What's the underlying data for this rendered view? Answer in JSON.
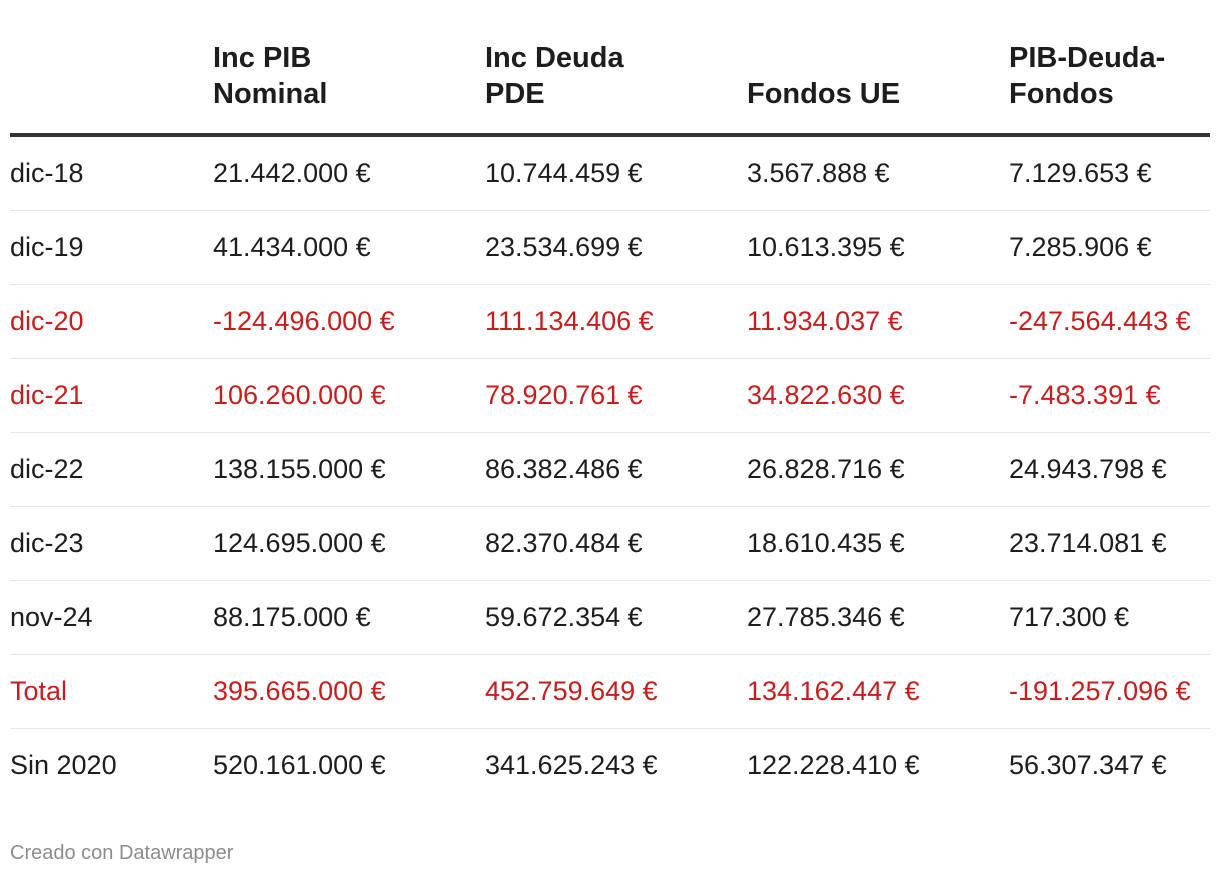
{
  "chart_data": {
    "type": "table",
    "columns": [
      "",
      "Inc PIB Nominal",
      "Inc Deuda PDE",
      "Fondos UE",
      "PIB-Deuda-Fondos"
    ],
    "column_lines": [
      [
        "",
        ""
      ],
      [
        "Inc PIB",
        "Nominal"
      ],
      [
        "Inc Deuda",
        "PDE"
      ],
      [
        "",
        "Fondos UE"
      ],
      [
        "PIB-Deuda-",
        "Fondos"
      ]
    ],
    "rows": [
      {
        "cells": [
          "dic-18",
          "21.442.000 €",
          "10.744.459 €",
          "3.567.888 €",
          "7.129.653 €"
        ],
        "highlight": false
      },
      {
        "cells": [
          "dic-19",
          "41.434.000 €",
          "23.534.699 €",
          "10.613.395 €",
          "7.285.906 €"
        ],
        "highlight": false
      },
      {
        "cells": [
          "dic-20",
          "-124.496.000 €",
          "111.134.406 €",
          "11.934.037 €",
          "-247.564.443 €"
        ],
        "highlight": true
      },
      {
        "cells": [
          "dic-21",
          "106.260.000 €",
          "78.920.761 €",
          "34.822.630 €",
          "-7.483.391 €"
        ],
        "highlight": true
      },
      {
        "cells": [
          "dic-22",
          "138.155.000 €",
          "86.382.486 €",
          "26.828.716 €",
          "24.943.798 €"
        ],
        "highlight": false
      },
      {
        "cells": [
          "dic-23",
          "124.695.000 €",
          "82.370.484 €",
          "18.610.435 €",
          "23.714.081 €"
        ],
        "highlight": false
      },
      {
        "cells": [
          "nov-24",
          "88.175.000 €",
          "59.672.354 €",
          "27.785.346 €",
          "717.300 €"
        ],
        "highlight": false
      },
      {
        "cells": [
          "Total",
          "395.665.000 €",
          "452.759.649 €",
          "134.162.447 €",
          "-191.257.096 €"
        ],
        "highlight": true
      },
      {
        "cells": [
          "Sin 2020",
          "520.161.000 €",
          "341.625.243 €",
          "122.228.410 €",
          "56.307.347 €"
        ],
        "highlight": false
      }
    ],
    "highlight_color": "#c71e1d"
  },
  "footer": {
    "credit": "Creado con Datawrapper"
  }
}
